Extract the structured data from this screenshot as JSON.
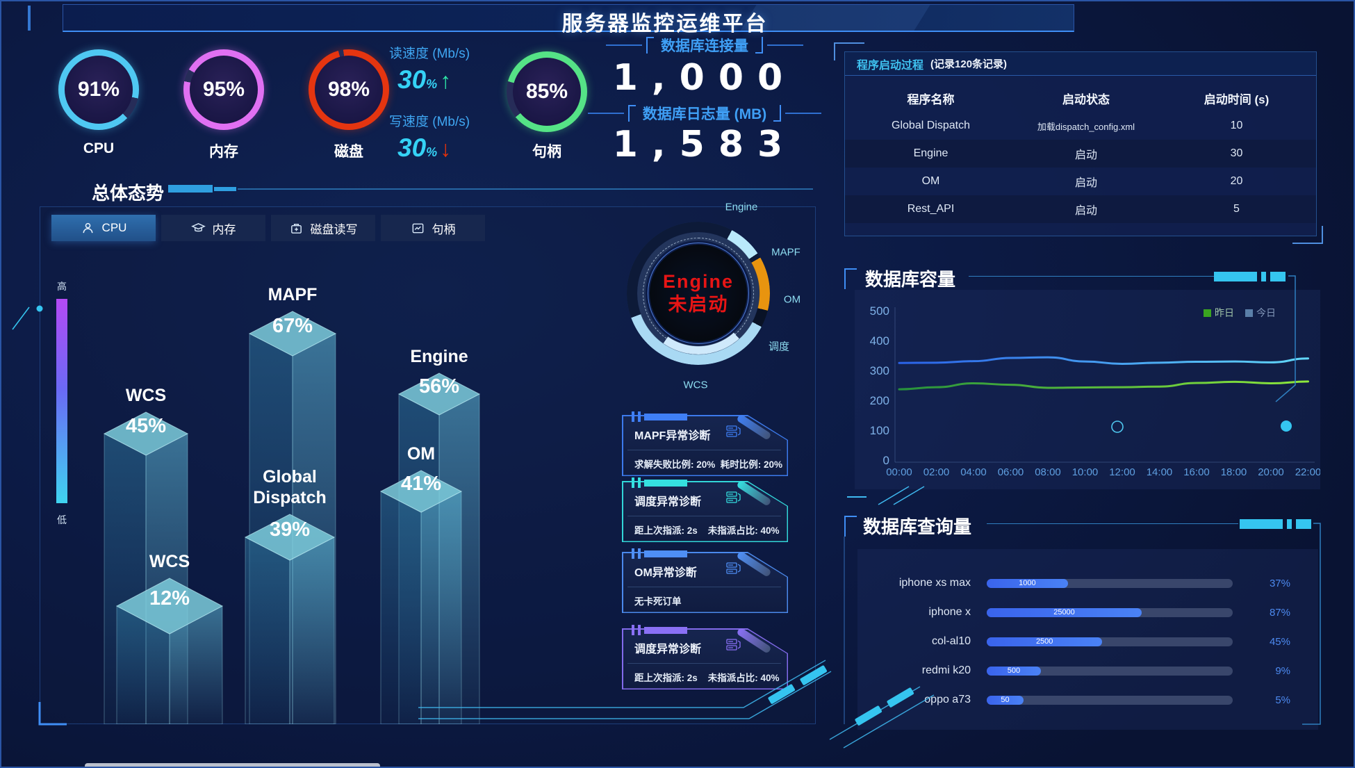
{
  "header": {
    "title": "服务器监控运维平台"
  },
  "gauges": [
    {
      "label": "CPU",
      "value": "91%",
      "pct": 91,
      "color": "#4fc8f2"
    },
    {
      "label": "内存",
      "value": "95%",
      "pct": 95,
      "color": "#e070f2"
    },
    {
      "label": "磁盘",
      "value": "98%",
      "pct": 98,
      "color": "#e53510"
    },
    {
      "label": "句柄",
      "value": "85%",
      "pct": 85,
      "color": "#55e386"
    }
  ],
  "speed": {
    "read_label": "读速度 (Mb/s)",
    "read_value": "30",
    "read_unit": "%",
    "up_arrow": "↑",
    "write_label": "写速度 (Mb/s)",
    "write_value": "30",
    "write_unit": "%",
    "down_arrow": "↓"
  },
  "kpis": {
    "connections_label": "数据库连接量",
    "connections_value": "1,000",
    "log_label": "数据库日志量 (MB)",
    "log_value": "1,583"
  },
  "process_table": {
    "title": "程序启动过程",
    "subtitle": "(记录120条记录)",
    "columns": [
      "程序名称",
      "启动状态",
      "启动时间 (s)"
    ],
    "rows": [
      [
        "Global Dispatch",
        "加载dispatch_config.xml",
        "10"
      ],
      [
        "Engine",
        "启动",
        "30"
      ],
      [
        "OM",
        "启动",
        "20"
      ],
      [
        "Rest_API",
        "启动",
        "5"
      ]
    ]
  },
  "overall": {
    "title": "总体态势",
    "tabs": [
      {
        "label": "CPU",
        "icon": "user-icon",
        "active": true
      },
      {
        "label": "内存",
        "icon": "cap-icon",
        "active": false
      },
      {
        "label": "磁盘读写",
        "icon": "disk-icon",
        "active": false
      },
      {
        "label": "句柄",
        "icon": "chart-icon",
        "active": false
      }
    ],
    "axis_high": "高",
    "axis_low": "低"
  },
  "ring": {
    "center_line1": "Engine",
    "center_line2": "未启动",
    "center_color": "#e81515",
    "labels": [
      "Engine",
      "MAPF",
      "OM",
      "调度",
      "WCS"
    ],
    "segment_colors": {
      "engine": "#b9e9fb",
      "mapf_om": "#e8940f",
      "wcs": "#a9d9f3"
    }
  },
  "cards": [
    {
      "title": "MAPF异常诊断",
      "stats": "求解失败比例: 20%  耗时比例: 20%",
      "accent": "#3f7ff5"
    },
    {
      "title": "调度异常诊断",
      "stats": "距上次指派: 2s    未指派占比: 40%",
      "accent": "#35e0e0"
    },
    {
      "title": "OM异常诊断",
      "stats": "无卡死订单",
      "accent": "#4f8ff5"
    },
    {
      "title": "调度异常诊断",
      "stats": "距上次指派: 2s    未指派占比: 40%",
      "accent": "#8a70f5"
    }
  ],
  "capacity": {
    "title": "数据库容量",
    "legend": [
      {
        "label": "昨日",
        "color": "#3aa520"
      },
      {
        "label": "今日",
        "color": "#5a7fa8"
      }
    ]
  },
  "query": {
    "title": "数据库查询量",
    "rows": [
      {
        "label": "iphone xs max",
        "value": "1000",
        "pct": "37%",
        "fill_pct": 33
      },
      {
        "label": "iphone x",
        "value": "25000",
        "pct": "87%",
        "fill_pct": 63
      },
      {
        "label": "col-al10",
        "value": "2500",
        "pct": "45%",
        "fill_pct": 47
      },
      {
        "label": "redmi k20",
        "value": "500",
        "pct": "9%",
        "fill_pct": 22
      },
      {
        "label": "oppo a73",
        "value": "50",
        "pct": "5%",
        "fill_pct": 15
      }
    ]
  },
  "chart_data": [
    {
      "type": "bar",
      "variant": "3d-column",
      "title": "总体态势 - CPU",
      "unit": "%",
      "categories": [
        "MAPF",
        "Engine",
        "WCS",
        "Global Dispatch",
        "OM",
        "WCS"
      ],
      "values": [
        67,
        56,
        45,
        39,
        41,
        12
      ],
      "ylabel": "高/低"
    },
    {
      "type": "line",
      "title": "数据库容量",
      "ylim": [
        0,
        500
      ],
      "legend_position": "top-right",
      "x": [
        "00:00",
        "02:00",
        "04:00",
        "06:00",
        "08:00",
        "10:00",
        "12:00",
        "14:00",
        "16:00",
        "18:00",
        "20:00",
        "22:00"
      ],
      "series": [
        {
          "name": "昨日",
          "color": "#2e9e3f",
          "values": [
            237,
            244,
            257,
            252,
            242,
            243,
            244,
            246,
            258,
            262,
            257,
            263
          ]
        },
        {
          "name": "今日",
          "color": "#2b6be8",
          "values": [
            325,
            326,
            331,
            342,
            344,
            330,
            322,
            326,
            329,
            330,
            327,
            340
          ]
        }
      ]
    },
    {
      "type": "bar",
      "variant": "horizontal",
      "title": "数据库查询量",
      "categories": [
        "iphone xs max",
        "iphone x",
        "col-al10",
        "redmi k20",
        "oppo a73"
      ],
      "values": [
        1000,
        25000,
        2500,
        500,
        50
      ],
      "percent": [
        37,
        87,
        45,
        9,
        5
      ],
      "fill_pct": [
        33,
        63,
        47,
        22,
        15
      ]
    }
  ]
}
